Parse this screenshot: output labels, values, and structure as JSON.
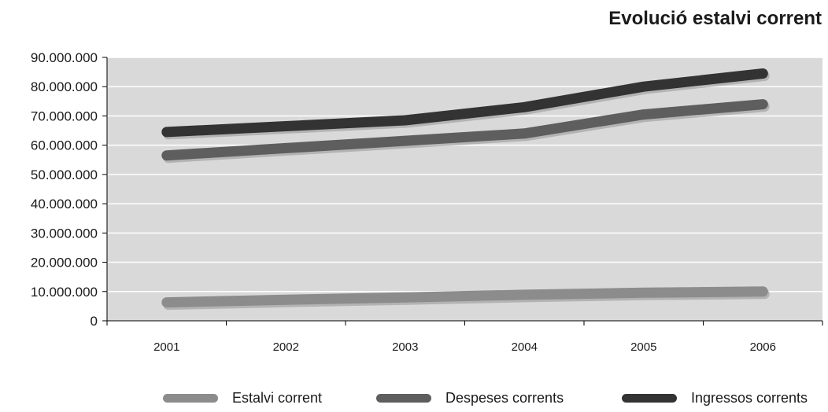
{
  "chart_data": {
    "type": "line",
    "title": "Evolució estalvi corrent",
    "xlabel": "",
    "ylabel": "",
    "categories": [
      "2001",
      "2002",
      "2003",
      "2004",
      "2005",
      "2006"
    ],
    "ylim": [
      0,
      90000000
    ],
    "y_ticks": [
      0,
      10000000,
      20000000,
      30000000,
      40000000,
      50000000,
      60000000,
      70000000,
      80000000,
      90000000
    ],
    "y_tick_labels": [
      "0",
      "10.000.000",
      "20.000.000",
      "30.000.000",
      "40.000.000",
      "50.000.000",
      "60.000.000",
      "70.000.000",
      "80.000.000",
      "90.000.000"
    ],
    "grid": true,
    "legend_position": "bottom",
    "plot_background": "#d9d9d9",
    "series": [
      {
        "name": "Estalvi corrent",
        "color": "#8c8c8c",
        "values": [
          6300000,
          7200000,
          8000000,
          8900000,
          9600000,
          10000000
        ]
      },
      {
        "name": "Despeses corrents",
        "color": "#5e5e5e",
        "values": [
          56500000,
          59000000,
          61500000,
          64000000,
          70500000,
          74000000
        ]
      },
      {
        "name": "Ingressos corrents",
        "color": "#333333",
        "values": [
          64500000,
          66500000,
          68500000,
          73000000,
          80000000,
          84500000
        ]
      }
    ]
  }
}
